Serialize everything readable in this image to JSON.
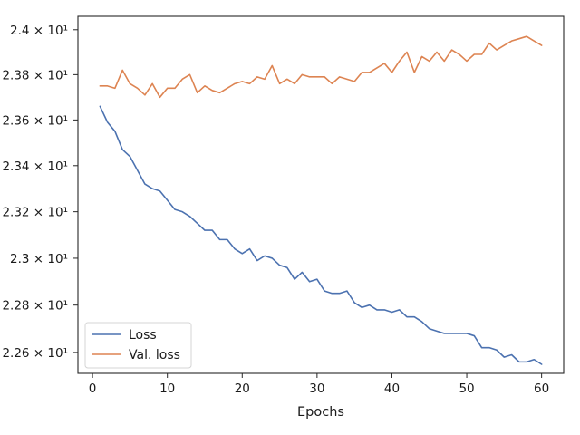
{
  "chart_data": {
    "type": "line",
    "title": "",
    "xlabel": "Epochs",
    "ylabel": "",
    "yscale": "log",
    "grid": false,
    "legend_position": "lower-left",
    "xlim": [
      -1.95,
      62.95
    ],
    "ylim": [
      22.512,
      24.06
    ],
    "xticks": [
      0,
      10,
      20,
      30,
      40,
      50,
      60
    ],
    "xtick_labels": [
      "0",
      "10",
      "20",
      "30",
      "40",
      "50",
      "60"
    ],
    "yticks": [
      22.6,
      22.8,
      23.0,
      23.2,
      23.4,
      23.6,
      23.8,
      24.0
    ],
    "ytick_labels": [
      "2.26 × 10¹",
      "2.28 × 10¹",
      "2.3 × 10¹",
      "2.32 × 10¹",
      "2.34 × 10¹",
      "2.36 × 10¹",
      "2.38 × 10¹",
      "2.4 × 10¹"
    ],
    "series": [
      {
        "name": "Loss",
        "color": "#4c72b0",
        "x": [
          1,
          2,
          3,
          4,
          5,
          6,
          7,
          8,
          9,
          10,
          11,
          12,
          13,
          14,
          15,
          16,
          17,
          18,
          19,
          20,
          21,
          22,
          23,
          24,
          25,
          26,
          27,
          28,
          29,
          30,
          31,
          32,
          33,
          34,
          35,
          36,
          37,
          38,
          39,
          40,
          41,
          42,
          43,
          44,
          45,
          46,
          47,
          48,
          49,
          50,
          51,
          52,
          53,
          54,
          55,
          56,
          57,
          58,
          59,
          60
        ],
        "values": [
          23.66,
          23.59,
          23.55,
          23.47,
          23.44,
          23.38,
          23.32,
          23.3,
          23.29,
          23.25,
          23.21,
          23.2,
          23.18,
          23.15,
          23.12,
          23.12,
          23.08,
          23.08,
          23.04,
          23.02,
          23.04,
          22.99,
          23.01,
          23.0,
          22.97,
          22.96,
          22.91,
          22.94,
          22.9,
          22.91,
          22.86,
          22.85,
          22.85,
          22.86,
          22.81,
          22.79,
          22.8,
          22.78,
          22.78,
          22.77,
          22.78,
          22.75,
          22.75,
          22.73,
          22.7,
          22.69,
          22.68,
          22.68,
          22.68,
          22.68,
          22.67,
          22.62,
          22.62,
          22.61,
          22.58,
          22.59,
          22.56,
          22.56,
          22.57,
          22.55
        ]
      },
      {
        "name": "Val. loss",
        "color": "#dd8452",
        "x": [
          1,
          2,
          3,
          4,
          5,
          6,
          7,
          8,
          9,
          10,
          11,
          12,
          13,
          14,
          15,
          16,
          17,
          18,
          19,
          20,
          21,
          22,
          23,
          24,
          25,
          26,
          27,
          28,
          29,
          30,
          31,
          32,
          33,
          34,
          35,
          36,
          37,
          38,
          39,
          40,
          41,
          42,
          43,
          44,
          45,
          46,
          47,
          48,
          49,
          50,
          51,
          52,
          53,
          54,
          55,
          56,
          57,
          58,
          59,
          60
        ],
        "values": [
          23.75,
          23.75,
          23.74,
          23.82,
          23.76,
          23.74,
          23.71,
          23.76,
          23.7,
          23.74,
          23.74,
          23.78,
          23.8,
          23.72,
          23.75,
          23.73,
          23.72,
          23.74,
          23.76,
          23.77,
          23.76,
          23.79,
          23.78,
          23.84,
          23.76,
          23.78,
          23.76,
          23.8,
          23.79,
          23.79,
          23.79,
          23.76,
          23.79,
          23.78,
          23.77,
          23.81,
          23.81,
          23.83,
          23.85,
          23.81,
          23.86,
          23.9,
          23.81,
          23.88,
          23.86,
          23.9,
          23.86,
          23.91,
          23.89,
          23.86,
          23.89,
          23.89,
          23.94,
          23.91,
          23.93,
          23.95,
          23.96,
          23.97,
          23.95,
          23.93
        ]
      }
    ]
  }
}
